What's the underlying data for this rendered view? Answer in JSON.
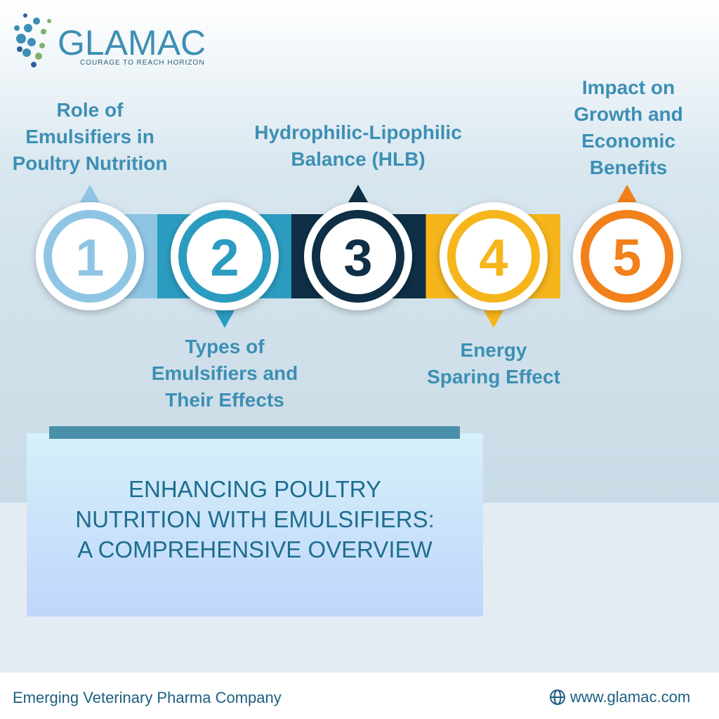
{
  "logo": {
    "name": "GLAMAC",
    "tagline": "COURAGE TO REACH HORIZON"
  },
  "steps": [
    {
      "number": "1",
      "label": [
        "Role of",
        "Emulsifiers in",
        "Poultry Nutrition"
      ]
    },
    {
      "number": "2",
      "label": [
        "Types of",
        "Emulsifiers and",
        "Their Effects"
      ]
    },
    {
      "number": "3",
      "label": [
        "Hydrophilic-Lipophilic",
        "Balance (HLB)"
      ]
    },
    {
      "number": "4",
      "label": [
        "Energy",
        "Sparing Effect"
      ]
    },
    {
      "number": "5",
      "label": [
        "Impact on",
        "Growth and",
        "Economic",
        "Benefits"
      ]
    }
  ],
  "title": [
    "ENHANCING POULTRY",
    "NUTRITION WITH EMULSIFIERS:",
    "A COMPREHENSIVE OVERVIEW"
  ],
  "footer": {
    "tagline": "Emerging Veterinary Pharma Company",
    "website": "www.glamac.com"
  }
}
